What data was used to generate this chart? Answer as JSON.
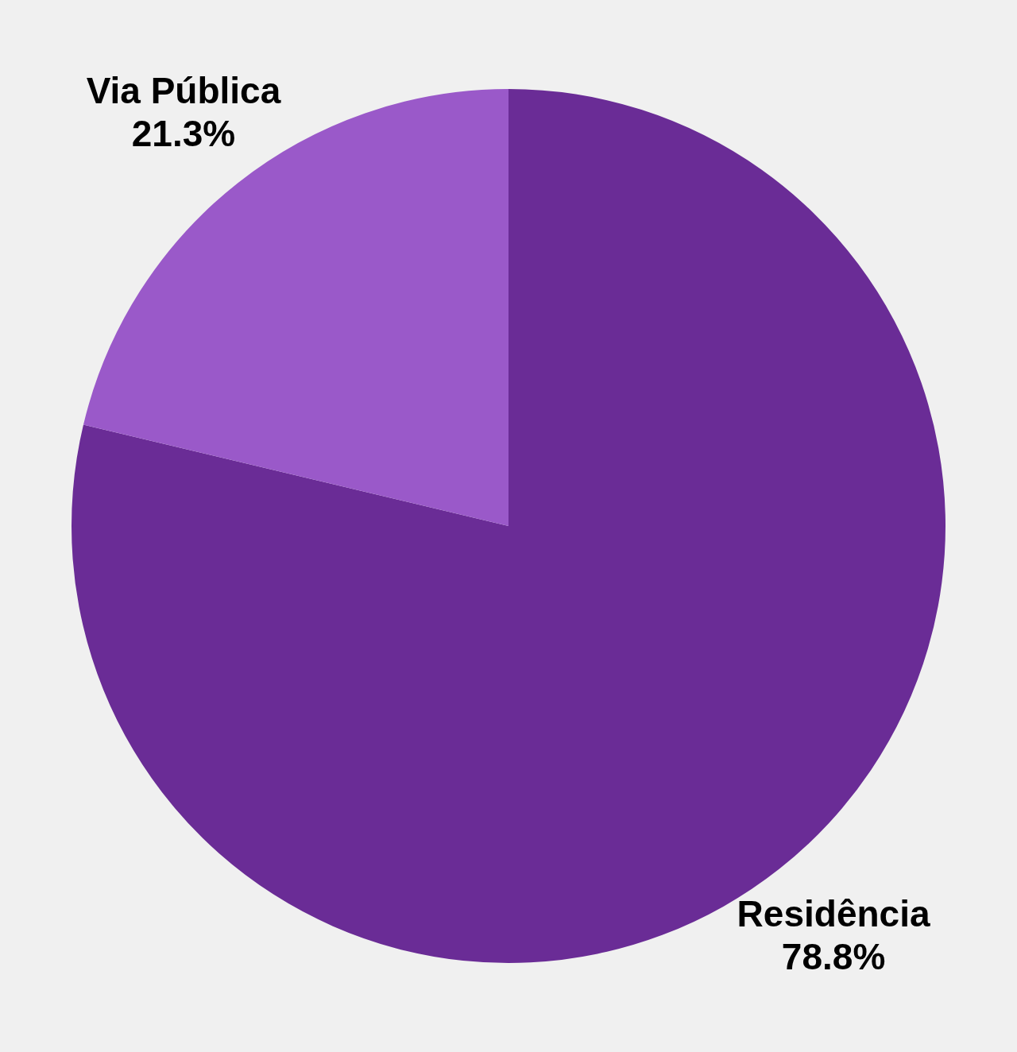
{
  "chart_data": {
    "type": "pie",
    "categories": [
      "Residência",
      "Via Pública"
    ],
    "values": [
      78.8,
      21.3
    ],
    "colors": [
      "#6a2c96",
      "#9a59c9"
    ],
    "value_labels": [
      "78.8%",
      "21.3%"
    ],
    "legend": false
  }
}
